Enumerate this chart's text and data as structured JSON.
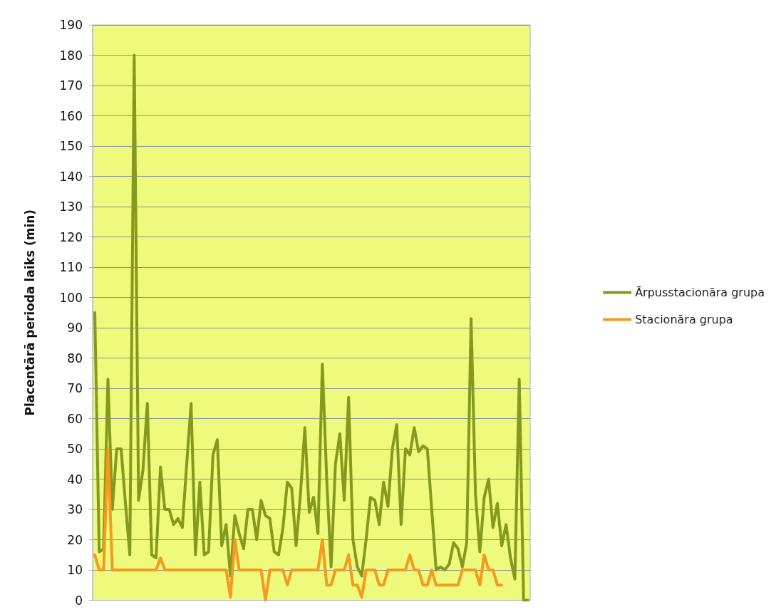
{
  "chart_data": {
    "type": "line",
    "ylabel": "Placentārā perioda laiks (min)",
    "categories": [
      null,
      null,
      null,
      null,
      null,
      null,
      null,
      null,
      null,
      null,
      null,
      null,
      null,
      null,
      null,
      null,
      null,
      null,
      null,
      null,
      null,
      null,
      null,
      null,
      null,
      null,
      null,
      null,
      null,
      null,
      null,
      null,
      null,
      null,
      null,
      null,
      null,
      null,
      null,
      null,
      null,
      null,
      null,
      null,
      null,
      null,
      null,
      null,
      null,
      null,
      null,
      null,
      null,
      null,
      null,
      null,
      null,
      null,
      null,
      null,
      null,
      null,
      null,
      null,
      null,
      null,
      null,
      null,
      null,
      null,
      null,
      null,
      null,
      null,
      null,
      null,
      null,
      null,
      null,
      null,
      null,
      null,
      null,
      null,
      null,
      null,
      null,
      null,
      null,
      null,
      null,
      null,
      null,
      null,
      null,
      null,
      null,
      null,
      null,
      null
    ],
    "series": [
      {
        "name": "Ārpusstacionāra grupa",
        "color": "#86991e",
        "values": [
          95,
          16,
          17,
          73,
          30,
          50,
          50,
          32,
          15,
          180,
          33,
          43,
          65,
          15,
          14,
          44,
          30,
          30,
          25,
          27,
          24,
          45,
          65,
          15,
          39,
          15,
          16,
          48,
          53,
          18,
          25,
          8,
          28,
          22,
          17,
          30,
          30,
          20,
          33,
          28,
          27,
          16,
          15,
          24,
          39,
          37,
          18,
          35,
          57,
          29,
          34,
          22,
          78,
          40,
          11,
          45,
          55,
          33,
          67,
          20,
          11,
          8,
          20,
          34,
          33,
          25,
          39,
          31,
          50,
          58,
          25,
          50,
          48,
          57,
          49,
          51,
          50,
          30,
          10,
          11,
          10,
          12,
          19,
          17,
          11,
          19,
          93,
          35,
          16,
          34,
          40,
          24,
          32,
          18,
          25,
          14,
          7,
          73,
          0,
          0
        ]
      },
      {
        "name": "Stacionāra grupa",
        "color": "#f39a1f",
        "values": [
          15,
          10,
          10,
          50,
          10,
          10,
          10,
          10,
          10,
          10,
          10,
          10,
          10,
          10,
          10,
          14,
          10,
          10,
          10,
          10,
          10,
          10,
          10,
          10,
          10,
          10,
          10,
          10,
          10,
          10,
          10,
          1,
          20,
          10,
          10,
          10,
          10,
          10,
          10,
          0,
          10,
          10,
          10,
          10,
          5,
          10,
          10,
          10,
          10,
          10,
          10,
          10,
          20,
          5,
          5,
          10,
          10,
          10,
          15,
          5,
          5,
          1,
          10,
          10,
          10,
          5,
          5,
          10,
          10,
          10,
          10,
          10,
          15,
          10,
          10,
          5,
          5,
          10,
          5,
          5,
          5,
          5,
          5,
          5,
          10,
          10,
          10,
          10,
          5,
          15,
          10,
          10,
          5,
          5,
          null,
          null,
          null,
          null,
          null,
          null
        ]
      }
    ],
    "ylim": [
      0,
      190
    ],
    "yticks": [
      0,
      10,
      20,
      30,
      40,
      50,
      60,
      70,
      80,
      90,
      100,
      110,
      120,
      130,
      140,
      150,
      160,
      170,
      180,
      190
    ],
    "grid": "y",
    "legend": "right",
    "marker": "none",
    "line_style": "solid"
  }
}
